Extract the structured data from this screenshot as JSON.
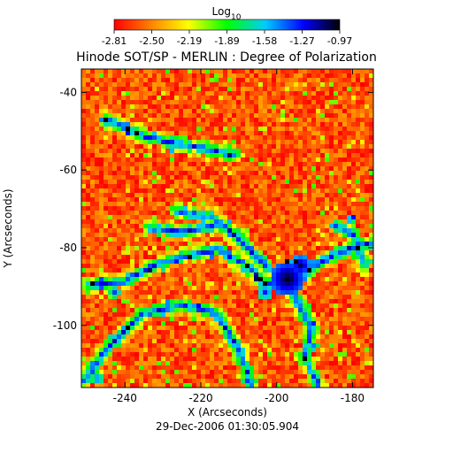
{
  "chart_data": {
    "type": "heatmap",
    "title": "Hinode SOT/SP - MERLIN : Degree of Polarization",
    "colorbar": {
      "label_base": "Log",
      "label_sub": "10",
      "ticks": [
        "-2.81",
        "-2.50",
        "-2.19",
        "-1.89",
        "-1.58",
        "-1.27",
        "-0.97"
      ],
      "range": [
        -2.81,
        -0.97
      ],
      "colors": [
        "#ff0000",
        "#ff9900",
        "#ffff00",
        "#00ff00",
        "#00ccff",
        "#0000ff",
        "#000000"
      ]
    },
    "xlabel": "X (Arcseconds)",
    "ylabel": "Y (Arcseconds)",
    "xlim": [
      -251.5,
      -174.5
    ],
    "ylim": [
      -116,
      -34
    ],
    "xticks": [
      "-240",
      "-220",
      "-200",
      "-180"
    ],
    "yticks": [
      "-40",
      "-60",
      "-80",
      "-100"
    ],
    "timestamp": "29-Dec-2006 01:30:05.904",
    "grid": false
  }
}
